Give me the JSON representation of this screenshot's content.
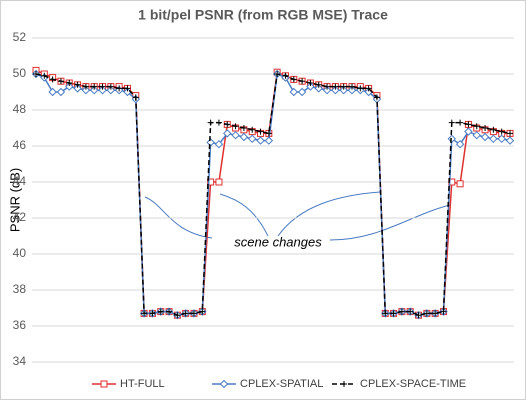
{
  "chart_data": {
    "type": "line",
    "title": "1 bit/pel PSNR (from RGB MSE) Trace",
    "y_label": "PSNR (dB)",
    "annotation": "scene changes",
    "ylim": [
      34,
      52
    ],
    "yticks": [
      34,
      36,
      38,
      40,
      42,
      44,
      46,
      48,
      50,
      52
    ],
    "grid": true,
    "legend": "bottom",
    "series": [
      {
        "name": "HT-FULL",
        "color": "#e03030",
        "marker": "square",
        "dash": "solid",
        "values": [
          50.2,
          50.0,
          49.8,
          49.6,
          49.5,
          49.4,
          49.3,
          49.3,
          49.3,
          49.3,
          49.3,
          49.2,
          48.8,
          36.7,
          36.7,
          36.8,
          36.8,
          36.6,
          36.7,
          36.7,
          36.8,
          44.0,
          44.0,
          47.2,
          47.0,
          46.9,
          46.8,
          46.7,
          46.7,
          50.1,
          49.9,
          49.7,
          49.6,
          49.5,
          49.4,
          49.3,
          49.3,
          49.3,
          49.3,
          49.3,
          49.2,
          48.8,
          36.7,
          36.7,
          36.8,
          36.8,
          36.6,
          36.7,
          36.7,
          36.8,
          44.0,
          43.9,
          47.2,
          47.0,
          46.9,
          46.8,
          46.7,
          46.7
        ]
      },
      {
        "name": "CPLEX-SPATIAL",
        "color": "#4a7cc4",
        "marker": "diamond",
        "dash": "solid",
        "values": [
          50.0,
          49.8,
          49.0,
          49.0,
          49.3,
          49.2,
          49.1,
          49.1,
          49.1,
          49.1,
          49.1,
          49.0,
          48.6,
          36.7,
          36.7,
          36.8,
          36.8,
          36.6,
          36.7,
          36.7,
          36.8,
          46.2,
          46.1,
          46.7,
          46.6,
          46.5,
          46.4,
          46.3,
          46.3,
          50.0,
          49.8,
          49.0,
          49.0,
          49.3,
          49.2,
          49.1,
          49.1,
          49.1,
          49.1,
          49.1,
          49.0,
          48.6,
          36.7,
          36.7,
          36.8,
          36.8,
          36.6,
          36.7,
          36.7,
          36.8,
          46.4,
          46.1,
          46.8,
          46.6,
          46.5,
          46.4,
          46.4,
          46.3
        ]
      },
      {
        "name": "CPLEX-SPACE-TIME",
        "color": "#000000",
        "marker": "plus",
        "dash": "dashed",
        "values": [
          50.0,
          49.9,
          49.7,
          49.6,
          49.5,
          49.4,
          49.3,
          49.3,
          49.3,
          49.3,
          49.2,
          49.2,
          48.7,
          36.7,
          36.7,
          36.8,
          36.8,
          36.6,
          36.7,
          36.7,
          36.8,
          47.3,
          47.3,
          47.2,
          47.1,
          47.0,
          46.9,
          46.8,
          46.7,
          50.0,
          49.9,
          49.7,
          49.6,
          49.5,
          49.4,
          49.3,
          49.3,
          49.3,
          49.3,
          49.2,
          49.2,
          48.7,
          36.7,
          36.7,
          36.8,
          36.8,
          36.6,
          36.7,
          36.7,
          36.8,
          47.3,
          47.3,
          47.2,
          47.1,
          47.0,
          46.9,
          46.8,
          46.7
        ]
      }
    ]
  }
}
